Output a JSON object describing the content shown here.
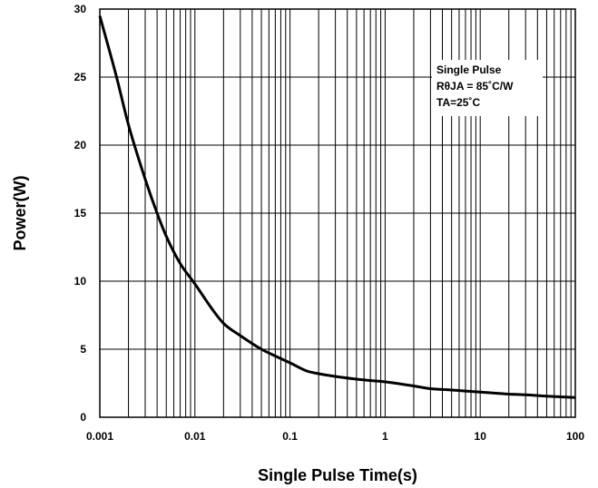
{
  "chart_data": {
    "type": "line",
    "xlabel": "Single Pulse Time(s)",
    "ylabel": "Power(W)",
    "x_scale": "log",
    "xlim": [
      0.001,
      100
    ],
    "ylim": [
      0,
      30
    ],
    "grid": true,
    "x_ticks": [
      "0.001",
      "0.01",
      "0.1",
      "1",
      "10",
      "100"
    ],
    "y_ticks": [
      "0",
      "5",
      "10",
      "15",
      "20",
      "25",
      "30"
    ],
    "annotations": [
      "Single Pulse",
      "RθJA = 85˚C/W",
      "TA=25˚C"
    ],
    "series": [
      {
        "x": [
          0.001,
          0.0015,
          0.002,
          0.003,
          0.004,
          0.005,
          0.007,
          0.01,
          0.015,
          0.02,
          0.03,
          0.05,
          0.07,
          0.1,
          0.15,
          0.2,
          0.3,
          0.5,
          0.7,
          1,
          2,
          3,
          5,
          10,
          20,
          30,
          50,
          100
        ],
        "y": [
          29.5,
          25.0,
          21.5,
          17.5,
          15.0,
          13.3,
          11.3,
          9.8,
          8.0,
          6.9,
          6.0,
          5.0,
          4.5,
          4.0,
          3.4,
          3.2,
          3.0,
          2.8,
          2.7,
          2.6,
          2.3,
          2.1,
          2.0,
          1.85,
          1.7,
          1.65,
          1.55,
          1.45
        ],
        "color": "#000000"
      }
    ]
  }
}
